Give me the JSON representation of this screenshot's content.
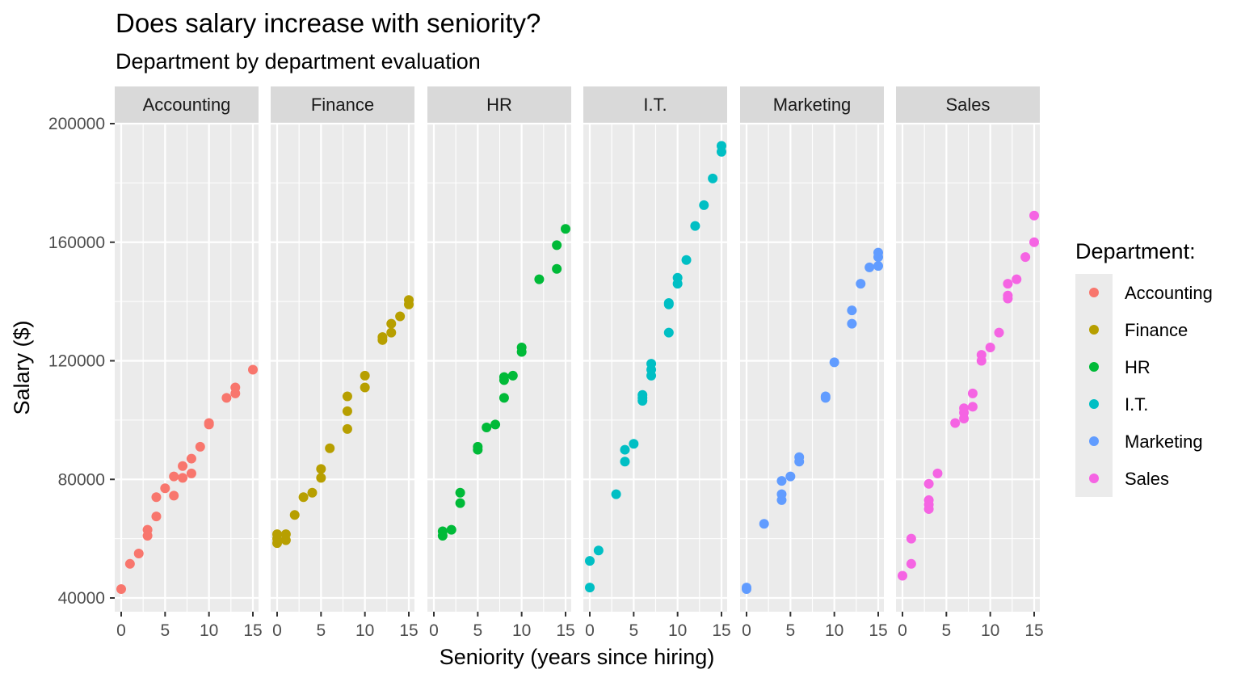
{
  "chart_data": {
    "type": "scatter",
    "title": "Does salary increase with seniority?",
    "subtitle": "Department by department evaluation",
    "xlabel": "Seniority (years since hiring)",
    "ylabel": "Salary ($)",
    "xlim": [
      -0.75,
      15.75
    ],
    "ylim": [
      36000,
      204000
    ],
    "x_ticks": [
      0,
      5,
      10,
      15
    ],
    "y_ticks": [
      40000,
      80000,
      120000,
      160000,
      200000
    ],
    "x_tick_labels": [
      "0",
      "5",
      "10",
      "15"
    ],
    "y_tick_labels": [
      "40000",
      "80000",
      "120000",
      "160000",
      "200000"
    ],
    "grid": true,
    "facet_by": "Department",
    "legend": {
      "title": "Department:",
      "position": "right",
      "entries": [
        "Accounting",
        "Finance",
        "HR",
        "I.T.",
        "Marketing",
        "Sales"
      ]
    },
    "series": [
      {
        "name": "Accounting",
        "color": "#F8766D",
        "points": [
          [
            0,
            43000
          ],
          [
            1,
            51500
          ],
          [
            2,
            55000
          ],
          [
            3,
            61000
          ],
          [
            3,
            63000
          ],
          [
            4,
            67500
          ],
          [
            4,
            74000
          ],
          [
            5,
            77000
          ],
          [
            6,
            74500
          ],
          [
            6,
            81000
          ],
          [
            7,
            80500
          ],
          [
            7,
            84500
          ],
          [
            8,
            82000
          ],
          [
            8,
            87000
          ],
          [
            9,
            91000
          ],
          [
            10,
            98500
          ],
          [
            10,
            99000
          ],
          [
            12,
            107500
          ],
          [
            13,
            109000
          ],
          [
            13,
            111000
          ],
          [
            15,
            117000
          ]
        ]
      },
      {
        "name": "Finance",
        "color": "#B79F00",
        "points": [
          [
            0,
            58500
          ],
          [
            0,
            60000
          ],
          [
            0,
            61500
          ],
          [
            1,
            59500
          ],
          [
            1,
            61500
          ],
          [
            2,
            68000
          ],
          [
            3,
            74000
          ],
          [
            4,
            75500
          ],
          [
            5,
            80500
          ],
          [
            5,
            83500
          ],
          [
            6,
            90500
          ],
          [
            8,
            97000
          ],
          [
            8,
            103000
          ],
          [
            8,
            108000
          ],
          [
            10,
            111000
          ],
          [
            10,
            115000
          ],
          [
            12,
            127000
          ],
          [
            12,
            128000
          ],
          [
            13,
            129500
          ],
          [
            13,
            132500
          ],
          [
            14,
            135000
          ],
          [
            15,
            139000
          ],
          [
            15,
            140500
          ]
        ]
      },
      {
        "name": "HR",
        "color": "#00BA38",
        "points": [
          [
            1,
            61000
          ],
          [
            1,
            62500
          ],
          [
            2,
            63000
          ],
          [
            3,
            72000
          ],
          [
            3,
            75500
          ],
          [
            5,
            90000
          ],
          [
            5,
            91000
          ],
          [
            6,
            97500
          ],
          [
            7,
            98500
          ],
          [
            8,
            107500
          ],
          [
            8,
            113500
          ],
          [
            8,
            114500
          ],
          [
            9,
            115000
          ],
          [
            10,
            123000
          ],
          [
            10,
            124500
          ],
          [
            12,
            147500
          ],
          [
            14,
            151000
          ],
          [
            14,
            159000
          ],
          [
            15,
            164500
          ]
        ]
      },
      {
        "name": "I.T.",
        "color": "#00BFC4",
        "points": [
          [
            0,
            43500
          ],
          [
            0,
            52500
          ],
          [
            1,
            56000
          ],
          [
            3,
            75000
          ],
          [
            4,
            86000
          ],
          [
            4,
            90000
          ],
          [
            5,
            92000
          ],
          [
            6,
            106500
          ],
          [
            6,
            107500
          ],
          [
            6,
            108500
          ],
          [
            7,
            115000
          ],
          [
            7,
            117000
          ],
          [
            7,
            119000
          ],
          [
            9,
            129500
          ],
          [
            9,
            139000
          ],
          [
            9,
            139500
          ],
          [
            10,
            146000
          ],
          [
            10,
            148000
          ],
          [
            11,
            154000
          ],
          [
            12,
            165500
          ],
          [
            13,
            172500
          ],
          [
            14,
            181500
          ],
          [
            15,
            190500
          ],
          [
            15,
            192500
          ]
        ]
      },
      {
        "name": "Marketing",
        "color": "#619CFF",
        "points": [
          [
            0,
            43000
          ],
          [
            0,
            43500
          ],
          [
            2,
            65000
          ],
          [
            4,
            73000
          ],
          [
            4,
            75000
          ],
          [
            4,
            79500
          ],
          [
            5,
            81000
          ],
          [
            6,
            86000
          ],
          [
            6,
            87500
          ],
          [
            9,
            107500
          ],
          [
            9,
            108000
          ],
          [
            10,
            119500
          ],
          [
            12,
            132500
          ],
          [
            12,
            137000
          ],
          [
            13,
            146000
          ],
          [
            14,
            151500
          ],
          [
            15,
            152000
          ],
          [
            15,
            155000
          ],
          [
            15,
            156500
          ]
        ]
      },
      {
        "name": "Sales",
        "color": "#F564E3",
        "points": [
          [
            0,
            47500
          ],
          [
            1,
            51500
          ],
          [
            1,
            60000
          ],
          [
            3,
            70000
          ],
          [
            3,
            71500
          ],
          [
            3,
            73000
          ],
          [
            3,
            78500
          ],
          [
            4,
            82000
          ],
          [
            6,
            99000
          ],
          [
            7,
            100500
          ],
          [
            7,
            102500
          ],
          [
            7,
            104000
          ],
          [
            8,
            104500
          ],
          [
            8,
            109000
          ],
          [
            9,
            120000
          ],
          [
            9,
            122000
          ],
          [
            10,
            124500
          ],
          [
            11,
            129500
          ],
          [
            12,
            141000
          ],
          [
            12,
            142000
          ],
          [
            12,
            146000
          ],
          [
            13,
            147500
          ],
          [
            14,
            155000
          ],
          [
            15,
            160000
          ],
          [
            15,
            169000
          ]
        ]
      }
    ]
  }
}
